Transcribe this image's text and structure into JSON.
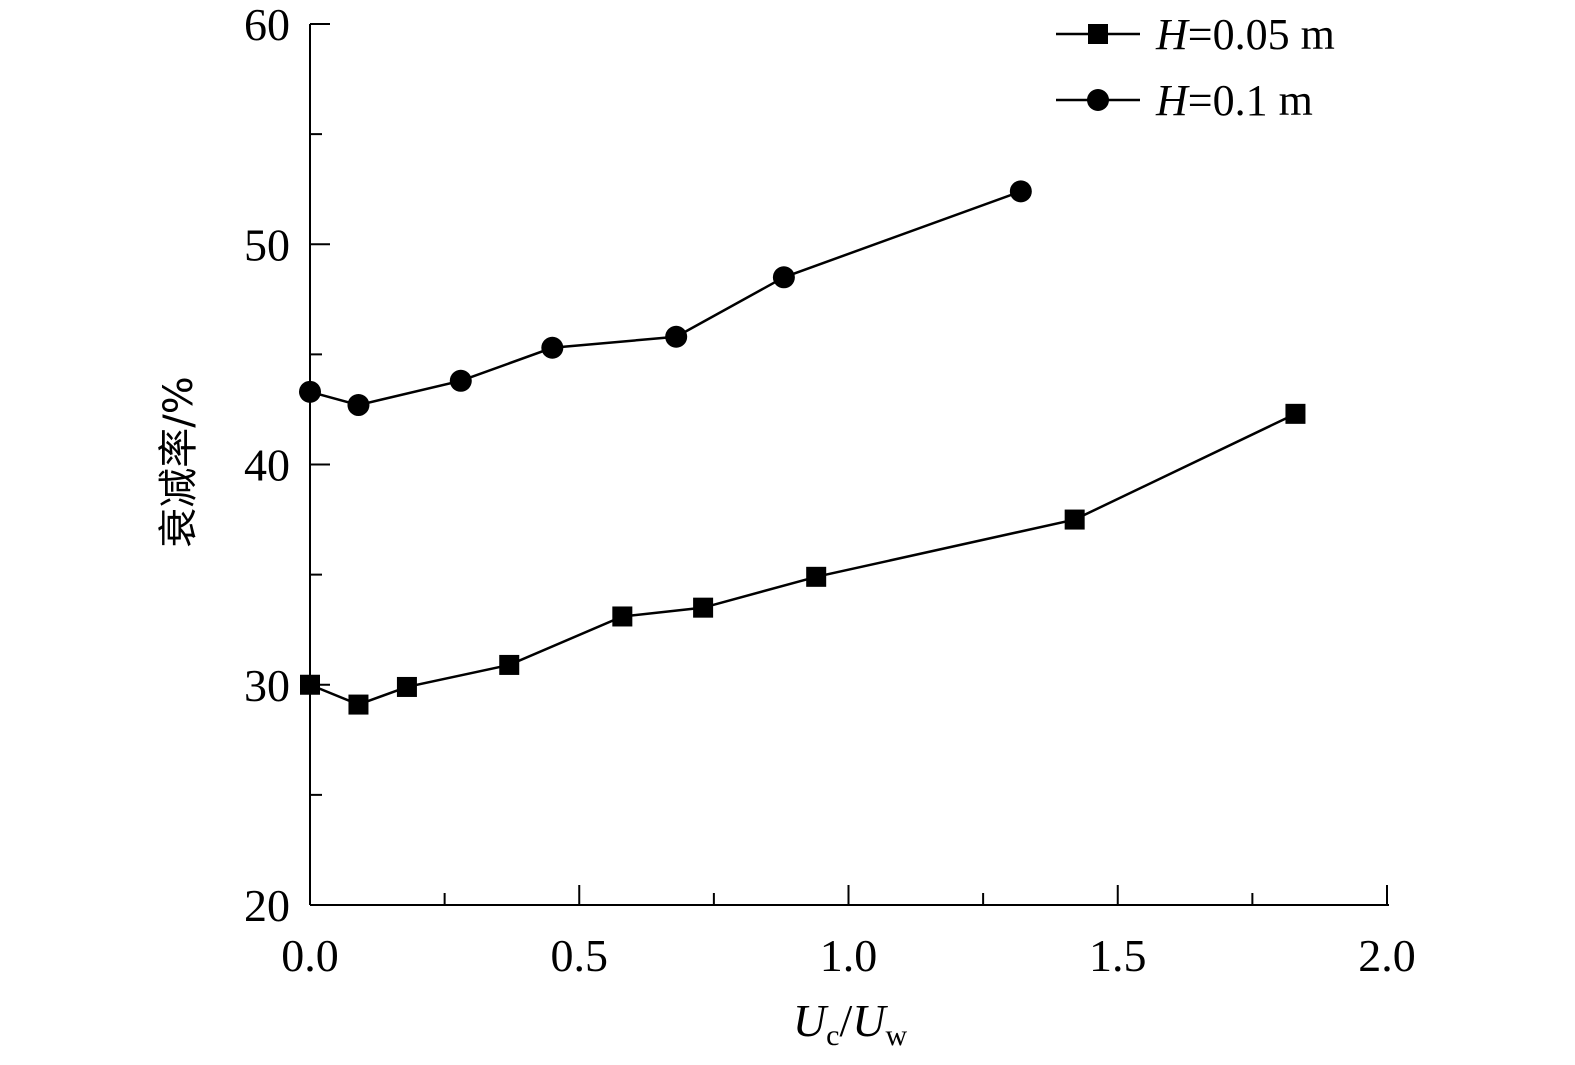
{
  "chart_data": {
    "type": "line",
    "title": "",
    "xlabel": {
      "main1": "U",
      "sub1": "c",
      "sep": "/",
      "main2": "U",
      "sub2": "w"
    },
    "ylabel": "衰减率/%",
    "xlim": [
      0.0,
      2.0
    ],
    "ylim": [
      20,
      60
    ],
    "x_ticks": [
      "0.0",
      "0.5",
      "1.0",
      "1.5",
      "2.0"
    ],
    "y_ticks": [
      "20",
      "30",
      "40",
      "50",
      "60"
    ],
    "grid": false,
    "legend_position": "top-right",
    "series": [
      {
        "name": "H=0.05 m",
        "name_parts": {
          "var": "H",
          "rest": "=0.05 m"
        },
        "marker": "square",
        "x": [
          0.0,
          0.09,
          0.18,
          0.37,
          0.58,
          0.73,
          0.94,
          1.42,
          1.83
        ],
        "y": [
          30.0,
          29.1,
          29.9,
          30.9,
          33.1,
          33.5,
          34.9,
          37.5,
          42.3
        ]
      },
      {
        "name": "H=0.1 m",
        "name_parts": {
          "var": "H",
          "rest": "=0.1 m"
        },
        "marker": "circle",
        "x": [
          0.0,
          0.09,
          0.28,
          0.45,
          0.68,
          0.88,
          1.32
        ],
        "y": [
          43.3,
          42.7,
          43.8,
          45.3,
          45.8,
          48.5,
          52.4
        ]
      }
    ],
    "color": "#000000"
  }
}
